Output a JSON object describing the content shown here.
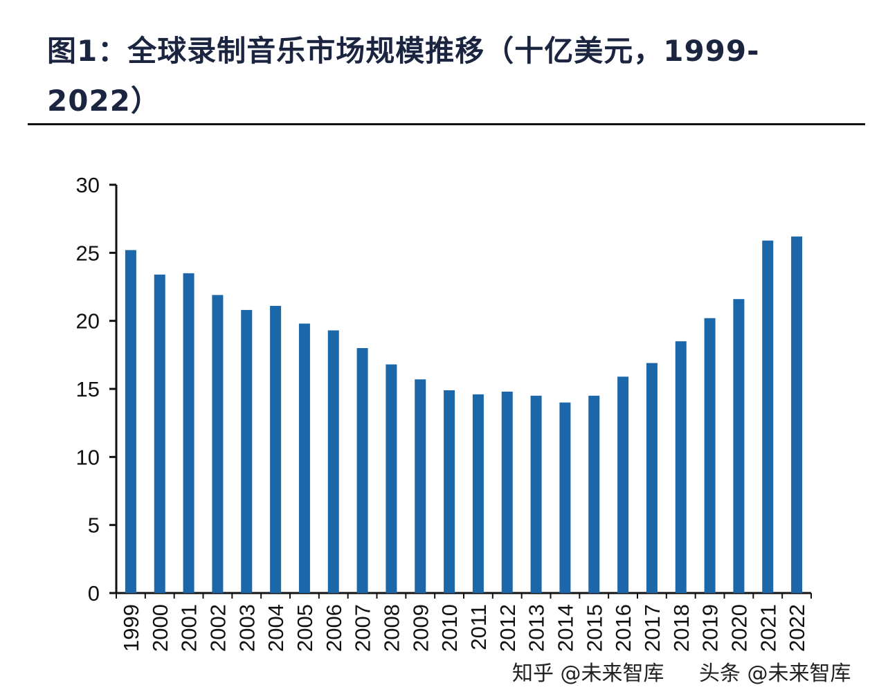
{
  "title": "图1：全球录制音乐市场规模推移（十亿美元，1999-2022）",
  "watermark": [
    "知乎 @未来智库",
    "头条 @未来智库"
  ],
  "chart_data": {
    "type": "bar",
    "title": "图1：全球录制音乐市场规模推移（十亿美元，1999-2022）",
    "categories": [
      "1999",
      "2000",
      "2001",
      "2002",
      "2003",
      "2004",
      "2005",
      "2006",
      "2007",
      "2008",
      "2009",
      "2010",
      "2011",
      "2012",
      "2013",
      "2014",
      "2015",
      "2016",
      "2017",
      "2018",
      "2019",
      "2020",
      "2021",
      "2022"
    ],
    "values": [
      25.2,
      23.4,
      23.5,
      21.9,
      20.8,
      21.1,
      19.8,
      19.3,
      18.0,
      16.8,
      15.7,
      14.9,
      14.6,
      14.8,
      14.5,
      14.0,
      14.5,
      15.9,
      16.9,
      18.5,
      20.2,
      21.6,
      25.9,
      26.2
    ],
    "ylim": [
      0,
      30
    ],
    "yticks": [
      0,
      5,
      10,
      15,
      20,
      25,
      30
    ],
    "xlabel": "",
    "ylabel": "",
    "grid": false,
    "bar_color": "#1b67aa"
  }
}
